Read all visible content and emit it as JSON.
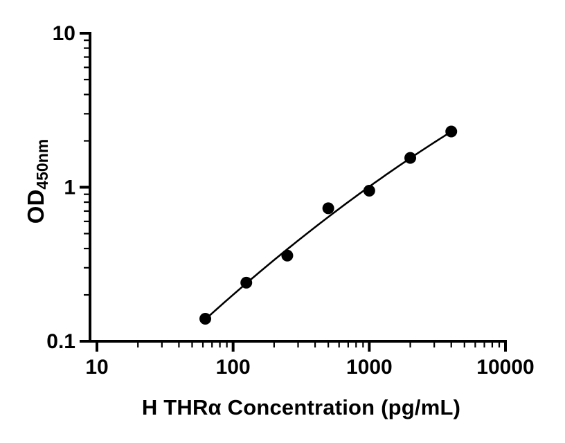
{
  "figure": {
    "background": "#ffffff"
  },
  "colors": {
    "axis": "#000000",
    "marker": "#000000",
    "curve": "#000000",
    "text": "#000000"
  },
  "chart_data": {
    "type": "scatter",
    "title": "",
    "xlabel": "H THRα Concentration (pg/mL)",
    "ylabel_main": "OD",
    "ylabel_sub": "450nm",
    "x_scale": "log",
    "y_scale": "log",
    "xlim": [
      10,
      10000
    ],
    "ylim": [
      0.1,
      10
    ],
    "x_major_ticks": [
      10,
      100,
      1000,
      10000
    ],
    "x_tick_labels": [
      "10",
      "100",
      "1000",
      "10000"
    ],
    "y_major_ticks": [
      0.1,
      1,
      10
    ],
    "y_tick_labels": [
      "0.1",
      "1",
      "10"
    ],
    "minor_ticks": true,
    "grid": false,
    "legend": "none",
    "series": [
      {
        "name": "standard-curve",
        "marker": "circle",
        "marker_color": "#000000",
        "line": "fit-curve",
        "line_color": "#000000",
        "x": [
          62.5,
          125,
          250,
          500,
          1000,
          2000,
          4000
        ],
        "y": [
          0.14,
          0.24,
          0.36,
          0.73,
          0.95,
          1.55,
          2.3
        ]
      }
    ]
  }
}
